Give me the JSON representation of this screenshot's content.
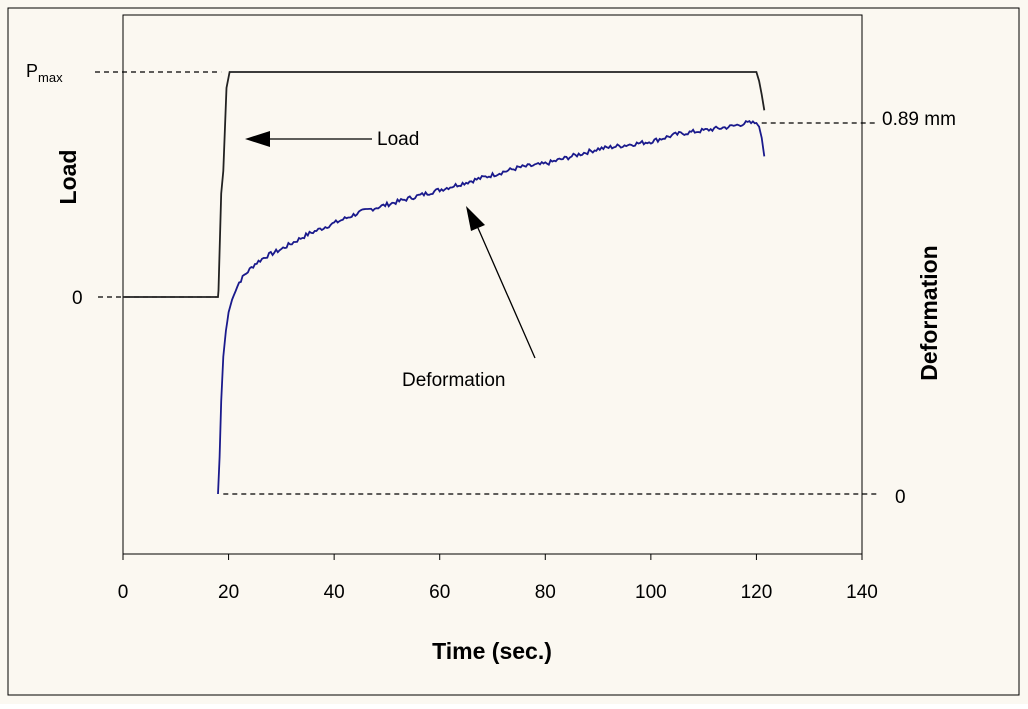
{
  "colors": {
    "page_background": "#fbf8f1",
    "frame": "#000000",
    "load_line": "#222222",
    "deformation_line": "#1a1a8c",
    "guide_line": "#000000"
  },
  "chart_data": {
    "type": "line",
    "title": "",
    "xlabel": "Time (sec.)",
    "ylabel_left": "Load",
    "ylabel_right": "Deformation",
    "xlim": [
      0,
      140
    ],
    "x_ticks": [
      "0",
      "20",
      "40",
      "60",
      "80",
      "100",
      "120",
      "140"
    ],
    "grid": false,
    "legend": "none",
    "left_axis_labels": {
      "pmax_main": "P",
      "pmax_sub": "max",
      "zero": "0"
    },
    "right_axis_labels": {
      "max_value": "0.89 mm",
      "zero": "0"
    },
    "annotations": {
      "load": "Load",
      "deformation": "Deformation"
    },
    "series": [
      {
        "name": "Load",
        "x": [
          0,
          18,
          18.1,
          18.6,
          19.0,
          19.6,
          20.2,
          25,
          60,
          100,
          120,
          120.5,
          121.0,
          121.5
        ],
        "y": [
          0,
          0,
          0.03,
          0.46,
          0.56,
          0.93,
          1.0,
          1.0,
          1.0,
          1.0,
          1.0,
          0.96,
          0.9,
          0.83
        ],
        "y_units": "fraction of Pmax"
      },
      {
        "name": "Deformation",
        "x": [
          18,
          18.3,
          18.6,
          19.0,
          19.5,
          20,
          21,
          22,
          23,
          25,
          27,
          30,
          35,
          40,
          45,
          50,
          55,
          60,
          65,
          70,
          75,
          80,
          85,
          90,
          95,
          100,
          105,
          110,
          115,
          118,
          120,
          120.5,
          121,
          121.5
        ],
        "y": [
          0,
          0.1,
          0.25,
          0.37,
          0.44,
          0.49,
          0.54,
          0.57,
          0.59,
          0.62,
          0.64,
          0.66,
          0.7,
          0.73,
          0.76,
          0.78,
          0.8,
          0.82,
          0.84,
          0.86,
          0.88,
          0.89,
          0.91,
          0.93,
          0.94,
          0.95,
          0.97,
          0.98,
          0.99,
          1.0,
          1.0,
          0.99,
          0.96,
          0.91
        ],
        "y_units": "fraction of 0.89 mm"
      }
    ]
  }
}
